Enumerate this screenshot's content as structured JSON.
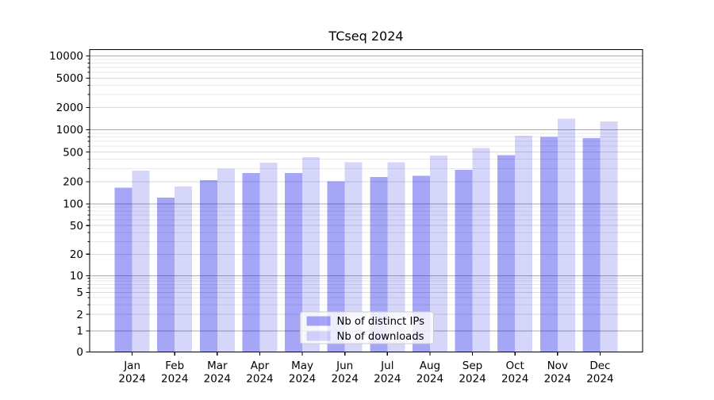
{
  "chart_data": {
    "type": "bar",
    "title": "TCseq 2024",
    "categories": [
      "Jan",
      "Feb",
      "Mar",
      "Apr",
      "May",
      "Jun",
      "Jul",
      "Aug",
      "Sep",
      "Oct",
      "Nov",
      "Dec"
    ],
    "x_tick_year": "2024",
    "series": [
      {
        "name": "Nb of distinct IPs",
        "base_color": "#0000e6",
        "alpha": 0.35,
        "rendered_color": "#a5a5f0",
        "values": [
          165,
          122,
          210,
          260,
          262,
          202,
          230,
          240,
          290,
          452,
          800,
          770
        ]
      },
      {
        "name": "Nb of downloads",
        "base_color": "#0000e6",
        "alpha": 0.16,
        "rendered_color": "#d6d6f8",
        "values": [
          281,
          172,
          300,
          360,
          430,
          365,
          365,
          450,
          565,
          830,
          1410,
          1290
        ]
      }
    ],
    "yscale": "symlog",
    "yticks": [
      0,
      1,
      2,
      5,
      10,
      20,
      50,
      100,
      200,
      500,
      1000,
      2000,
      5000,
      10000
    ],
    "ylim": [
      0,
      12000
    ],
    "xlabel": "",
    "ylabel": "",
    "grid": "both",
    "legend": {
      "position": "lower center",
      "entries": [
        "Nb of distinct IPs",
        "Nb of downloads"
      ]
    }
  },
  "colors": {
    "background": "#ffffff",
    "major_grid": "#aaaaaa",
    "labeled_grid": "#dadada",
    "minor_grid": "#e9e9e9",
    "axis": "#000000",
    "text": "#000000",
    "legend_border": "#cccccc",
    "legend_background": "rgba(255,255,255,0.8)"
  }
}
